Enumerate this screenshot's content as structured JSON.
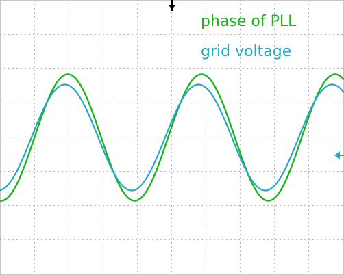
{
  "chart_data": {
    "type": "line",
    "grid": true,
    "x_divisions": 10,
    "y_divisions": 8,
    "legend_position": "top-right",
    "series": [
      {
        "name": "phase of PLL",
        "color": "#1db31d",
        "period_div": 3.9,
        "peak_div": 1.85,
        "min_div": -1.85,
        "phase_deg": 0
      },
      {
        "name": "grid voltage",
        "color": "#21a9c9",
        "period_div": 3.9,
        "peak_div": 1.55,
        "min_div": -1.55,
        "phase_deg": 8
      }
    ],
    "markers": {
      "trigger_color": "#000000",
      "channel_color": "#21a9c9"
    }
  }
}
